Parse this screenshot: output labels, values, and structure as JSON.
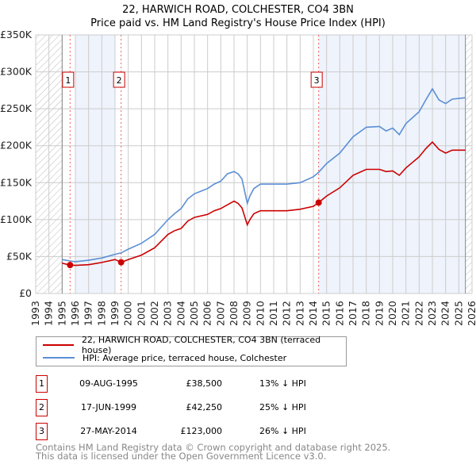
{
  "chart_data": {
    "type": "line",
    "title": "22, HARWICH ROAD, COLCHESTER, CO4 3BN",
    "subtitle": "Price paid vs. HM Land Registry's House Price Index (HPI)",
    "xlim": [
      1993,
      2026
    ],
    "ylim": [
      0,
      350000
    ],
    "x_ticks": [
      "1993",
      "1994",
      "1995",
      "1996",
      "1997",
      "1998",
      "1999",
      "2000",
      "2001",
      "2002",
      "2003",
      "2004",
      "2005",
      "2006",
      "2007",
      "2008",
      "2009",
      "2010",
      "2011",
      "2012",
      "2013",
      "2014",
      "2015",
      "2016",
      "2017",
      "2018",
      "2019",
      "2020",
      "2021",
      "2022",
      "2023",
      "2024",
      "2025",
      "2026"
    ],
    "y_ticks": [
      {
        "value": 0,
        "label": "£0"
      },
      {
        "value": 50000,
        "label": "£50K"
      },
      {
        "value": 100000,
        "label": "£100K"
      },
      {
        "value": 150000,
        "label": "£150K"
      },
      {
        "value": 200000,
        "label": "£200K"
      },
      {
        "value": 250000,
        "label": "£250K"
      },
      {
        "value": 300000,
        "label": "£300K"
      },
      {
        "value": 350000,
        "label": "£350K"
      }
    ],
    "grid": true,
    "hatched_ranges": [
      [
        1993,
        1995
      ],
      [
        2025.5,
        2026
      ]
    ],
    "shaded_ranges": [
      [
        1996,
        1999
      ],
      [
        2014.4,
        2025.5
      ]
    ],
    "series": [
      {
        "name": "22, HARWICH ROAD, COLCHESTER, CO4 3BN (terraced house)",
        "color": "#cc0000",
        "x": [
          1995.0,
          1995.6,
          1996,
          1997,
          1998,
          1999,
          1999.46,
          2000,
          2001,
          2002,
          2003,
          2003.5,
          2004,
          2004.5,
          2005,
          2006,
          2006.5,
          2007,
          2007.5,
          2008,
          2008.3,
          2008.6,
          2009.0,
          2009.2,
          2009.5,
          2010,
          2011,
          2012,
          2013,
          2014,
          2014.4,
          2015,
          2016,
          2017,
          2018,
          2019,
          2019.5,
          2020,
          2020.5,
          2021,
          2022,
          2022.5,
          2023,
          2023.5,
          2024,
          2024.5,
          2025.5
        ],
        "y": [
          41000,
          38500,
          38000,
          39000,
          42000,
          46000,
          42250,
          46000,
          52000,
          62000,
          80000,
          85000,
          88000,
          98000,
          103000,
          107000,
          112000,
          115000,
          120000,
          125000,
          122000,
          116000,
          93000,
          100000,
          108000,
          112000,
          112000,
          112000,
          114000,
          118000,
          123000,
          132000,
          143000,
          160000,
          168000,
          168000,
          165000,
          166000,
          160000,
          170000,
          185000,
          196000,
          205000,
          195000,
          190000,
          194000,
          194000
        ]
      },
      {
        "name": "HPI: Average price, terraced house, Colchester",
        "color": "#5b8fd4",
        "x": [
          1995.0,
          1995.6,
          1996,
          1997,
          1998,
          1999,
          1999.46,
          2000,
          2001,
          2002,
          2003,
          2003.5,
          2004,
          2004.5,
          2005,
          2006,
          2006.5,
          2007,
          2007.5,
          2008,
          2008.3,
          2008.6,
          2009.0,
          2009.2,
          2009.5,
          2010,
          2011,
          2012,
          2013,
          2014,
          2014.4,
          2015,
          2016,
          2017,
          2018,
          2019,
          2019.5,
          2020,
          2020.5,
          2021,
          2022,
          2022.5,
          2023,
          2023.5,
          2024,
          2024.5,
          2025.5
        ],
        "y": [
          46000,
          44000,
          43000,
          45000,
          48000,
          53000,
          55000,
          60000,
          68000,
          80000,
          100000,
          108000,
          115000,
          128000,
          135000,
          142000,
          148000,
          152000,
          162000,
          165000,
          162000,
          155000,
          122000,
          132000,
          142000,
          148000,
          148000,
          148000,
          150000,
          158000,
          164000,
          176000,
          190000,
          212000,
          225000,
          226000,
          220000,
          224000,
          215000,
          230000,
          246000,
          262000,
          277000,
          262000,
          257000,
          263000,
          265000
        ]
      }
    ],
    "sales": [
      {
        "label": "1",
        "x": 1995.6,
        "y": 38500
      },
      {
        "label": "2",
        "x": 1999.46,
        "y": 42250
      },
      {
        "label": "3",
        "x": 2014.4,
        "y": 123000
      }
    ]
  },
  "legend": {
    "property": "22, HARWICH ROAD, COLCHESTER, CO4 3BN (terraced house)",
    "hpi": "HPI: Average price, terraced house, Colchester"
  },
  "transactions": [
    {
      "num": "1",
      "date": "09-AUG-1995",
      "price": "£38,500",
      "hpi": "13% ↓ HPI"
    },
    {
      "num": "2",
      "date": "17-JUN-1999",
      "price": "£42,250",
      "hpi": "25% ↓ HPI"
    },
    {
      "num": "3",
      "date": "27-MAY-2014",
      "price": "£123,000",
      "hpi": "26% ↓ HPI"
    }
  ],
  "footer": {
    "line1": "Contains HM Land Registry data © Crown copyright and database right 2025.",
    "line2": "This data is licensed under the Open Government Licence v3.0."
  }
}
